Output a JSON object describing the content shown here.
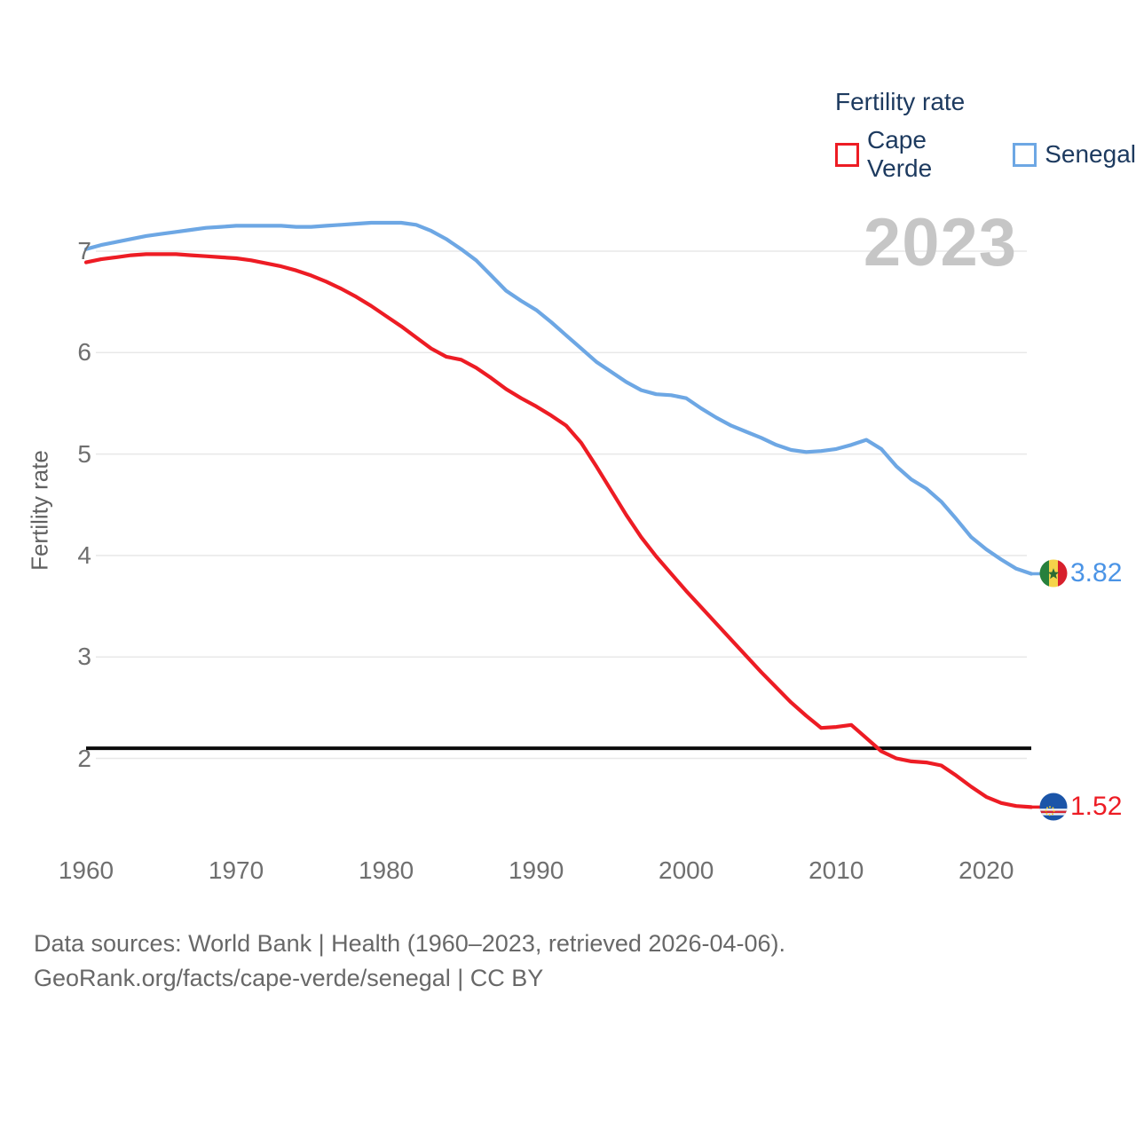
{
  "legend": {
    "title": "Fertility rate",
    "items": [
      {
        "label": "Cape Verde",
        "color": "#ed1c24"
      },
      {
        "label": "Senegal",
        "color": "#6da7e4"
      }
    ]
  },
  "watermark": "2023",
  "axes": {
    "y_title": "Fertility rate",
    "y_ticks": [
      7,
      6,
      5,
      4,
      3,
      2
    ],
    "x_ticks": [
      1960,
      1970,
      1980,
      1990,
      2000,
      2010,
      2020
    ]
  },
  "footer": {
    "line1": "Data sources: World Bank | Health (1960–2023, retrieved 2026-04-06).",
    "line2": "GeoRank.org/facts/cape-verde/senegal | CC BY"
  },
  "chart_data": {
    "type": "line",
    "title": "Fertility rate",
    "xlabel": "",
    "ylabel": "Fertility rate",
    "xlim": [
      1960,
      2023
    ],
    "ylim": [
      1.3,
      7.5
    ],
    "grid": "horizontal",
    "legend_position": "top-right",
    "years": [
      1960,
      1961,
      1962,
      1963,
      1964,
      1965,
      1966,
      1967,
      1968,
      1969,
      1970,
      1971,
      1972,
      1973,
      1974,
      1975,
      1976,
      1977,
      1978,
      1979,
      1980,
      1981,
      1982,
      1983,
      1984,
      1985,
      1986,
      1987,
      1988,
      1989,
      1990,
      1991,
      1992,
      1993,
      1994,
      1995,
      1996,
      1997,
      1998,
      1999,
      2000,
      2001,
      2002,
      2003,
      2004,
      2005,
      2006,
      2007,
      2008,
      2009,
      2010,
      2011,
      2012,
      2013,
      2014,
      2015,
      2016,
      2017,
      2018,
      2019,
      2020,
      2021,
      2022,
      2023
    ],
    "series": [
      {
        "name": "Cape Verde",
        "color": "#ed1c24",
        "end_label": "1.52",
        "values": [
          6.89,
          6.92,
          6.94,
          6.96,
          6.97,
          6.97,
          6.97,
          6.96,
          6.95,
          6.94,
          6.93,
          6.91,
          6.88,
          6.85,
          6.81,
          6.76,
          6.7,
          6.63,
          6.55,
          6.46,
          6.36,
          6.26,
          6.15,
          6.04,
          5.96,
          5.93,
          5.85,
          5.75,
          5.64,
          5.55,
          5.47,
          5.38,
          5.28,
          5.11,
          4.88,
          4.64,
          4.4,
          4.18,
          3.99,
          3.82,
          3.65,
          3.49,
          3.33,
          3.17,
          3.01,
          2.85,
          2.7,
          2.55,
          2.42,
          2.3,
          2.31,
          2.33,
          2.2,
          2.07,
          2.0,
          1.97,
          1.96,
          1.93,
          1.83,
          1.72,
          1.62,
          1.56,
          1.53,
          1.52
        ]
      },
      {
        "name": "Senegal",
        "color": "#6da7e4",
        "value_color": "#4b94e6",
        "end_label": "3.82",
        "values": [
          7.02,
          7.06,
          7.09,
          7.12,
          7.15,
          7.17,
          7.19,
          7.21,
          7.23,
          7.24,
          7.25,
          7.25,
          7.25,
          7.25,
          7.24,
          7.24,
          7.25,
          7.26,
          7.27,
          7.28,
          7.28,
          7.28,
          7.26,
          7.2,
          7.12,
          7.02,
          6.91,
          6.76,
          6.61,
          6.51,
          6.42,
          6.3,
          6.17,
          6.04,
          5.91,
          5.81,
          5.71,
          5.63,
          5.59,
          5.58,
          5.55,
          5.45,
          5.36,
          5.28,
          5.22,
          5.16,
          5.09,
          5.04,
          5.02,
          5.03,
          5.05,
          5.09,
          5.14,
          5.05,
          4.88,
          4.75,
          4.66,
          4.53,
          4.36,
          4.18,
          4.06,
          3.96,
          3.87,
          3.82
        ]
      }
    ],
    "reference_line": {
      "value": 2.1,
      "color": "#0b0b0b"
    }
  }
}
